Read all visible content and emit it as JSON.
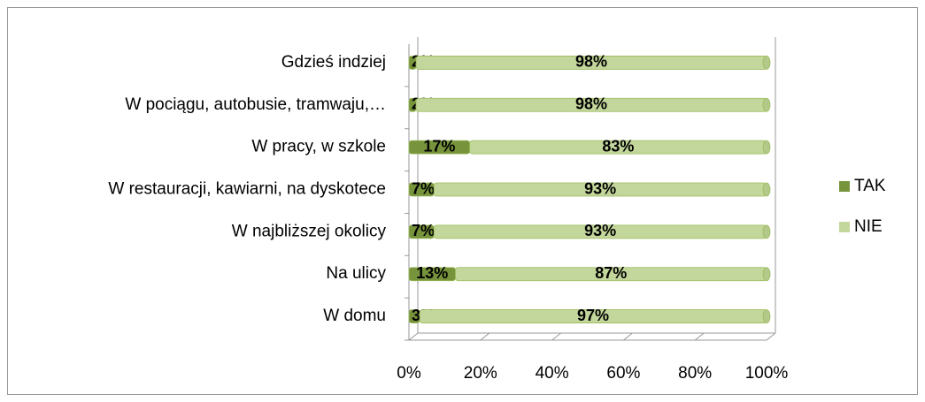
{
  "chart_data": {
    "type": "bar",
    "orientation": "horizontal",
    "stacked": "percent",
    "categories": [
      "Gdzieś indziej",
      "W pociągu, autobusie, tramwaju,…",
      "W pracy, w szkole",
      "W restauracji, kawiarni, na dyskotece",
      "W najbliższej okolicy",
      "Na ulicy",
      "W domu"
    ],
    "series": [
      {
        "name": "TAK",
        "color": "#77933c",
        "values": [
          2,
          2,
          17,
          7,
          7,
          13,
          3
        ],
        "value_labels": [
          "2%",
          "2%",
          "17%",
          "7%",
          "7%",
          "13%",
          "3%"
        ]
      },
      {
        "name": "NIE",
        "color": "#c3d69b",
        "values": [
          98,
          98,
          83,
          93,
          93,
          87,
          97
        ],
        "value_labels": [
          "98%",
          "98%",
          "83%",
          "93%",
          "93%",
          "87%",
          "97%"
        ]
      }
    ],
    "xlim": [
      0,
      100
    ],
    "xticks": [
      {
        "value": 0,
        "label": "0%"
      },
      {
        "value": 20,
        "label": "20%"
      },
      {
        "value": 40,
        "label": "40%"
      },
      {
        "value": 60,
        "label": "60%"
      },
      {
        "value": 80,
        "label": "80%"
      },
      {
        "value": 100,
        "label": "100%"
      }
    ],
    "legend": "right"
  }
}
